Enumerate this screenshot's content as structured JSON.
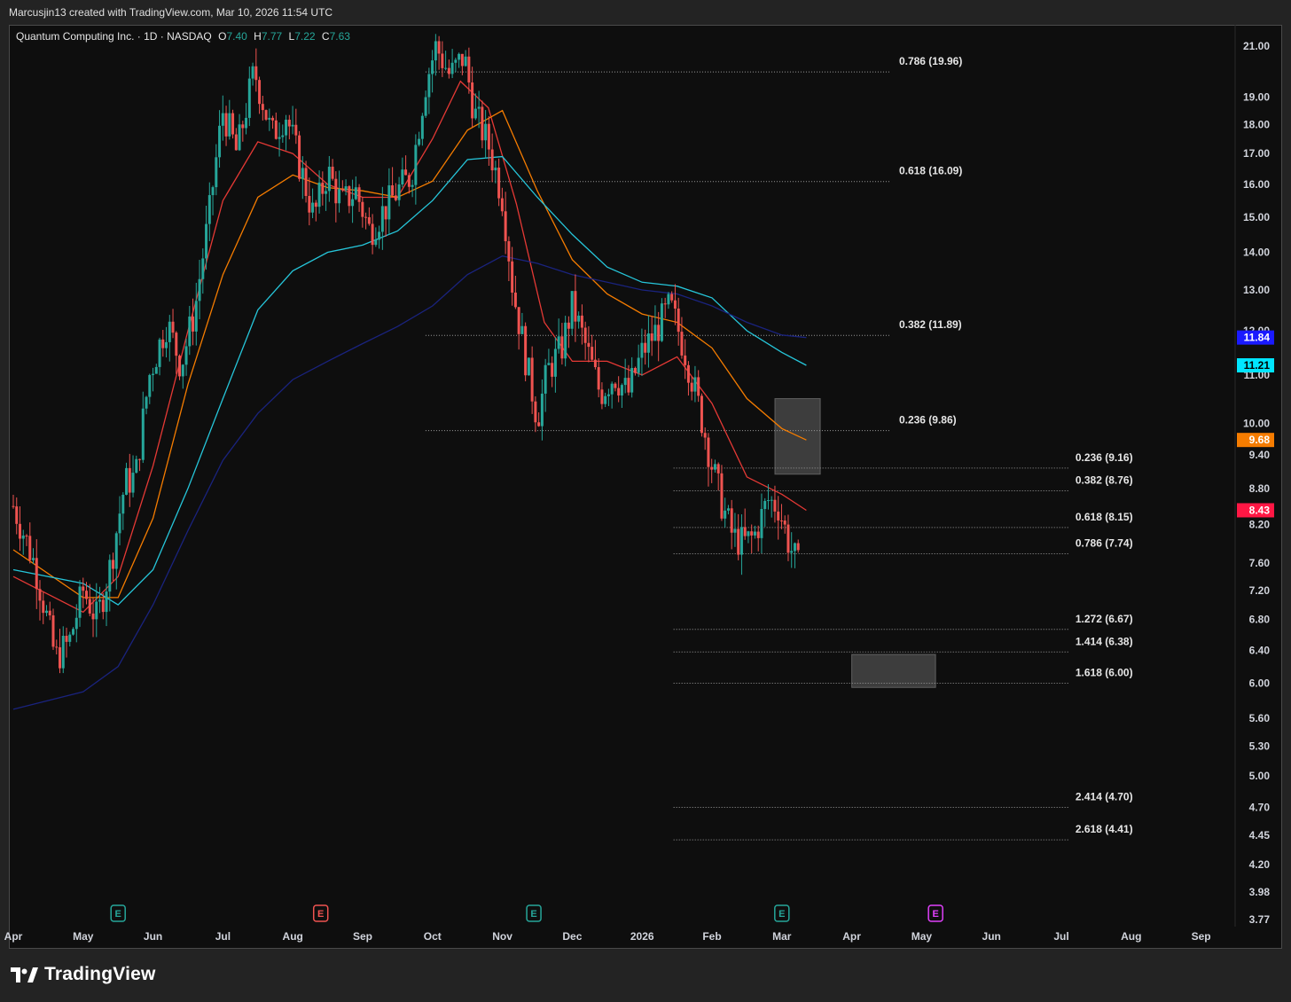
{
  "header": {
    "attribution": "Marcusjin13 created with TradingView.com, Mar 10, 2026 11:54 UTC"
  },
  "legend": {
    "symbol": "Quantum Computing Inc. · 1D · NASDAQ",
    "open_label": "O",
    "open": "7.40",
    "high_label": "H",
    "high": "7.77",
    "low_label": "L",
    "low": "7.22",
    "close_label": "C",
    "close": "7.63"
  },
  "footer": {
    "brand": "TradingView"
  },
  "colors": {
    "up": "#26a69a",
    "down": "#ef5350",
    "ma_red": "#e53935",
    "ma_orange": "#f57c00",
    "ma_teal": "#26c6da",
    "ma_blue": "#1a237e",
    "earnings_teal": "#26a69a",
    "earnings_red": "#ef5350",
    "earnings_magenta": "#e040fb"
  },
  "chart_data": {
    "type": "candlestick",
    "price_scale": "log",
    "y_ticks": [
      "21.00",
      "19.00",
      "18.00",
      "17.00",
      "16.00",
      "15.00",
      "14.00",
      "13.00",
      "12.00",
      "11.00",
      "10.00",
      "9.40",
      "8.80",
      "8.20",
      "7.60",
      "7.20",
      "6.80",
      "6.40",
      "6.00",
      "5.60",
      "5.30",
      "5.00",
      "4.70",
      "4.45",
      "4.20",
      "3.98",
      "3.77"
    ],
    "x_ticks": [
      {
        "label": "Apr",
        "month": 0
      },
      {
        "label": "May",
        "month": 1
      },
      {
        "label": "Jun",
        "month": 2
      },
      {
        "label": "Jul",
        "month": 3
      },
      {
        "label": "Aug",
        "month": 4
      },
      {
        "label": "Sep",
        "month": 5
      },
      {
        "label": "Oct",
        "month": 6
      },
      {
        "label": "Nov",
        "month": 7
      },
      {
        "label": "Dec",
        "month": 8
      },
      {
        "label": "2026",
        "month": 9
      },
      {
        "label": "Feb",
        "month": 10
      },
      {
        "label": "Mar",
        "month": 11
      },
      {
        "label": "Apr",
        "month": 12
      },
      {
        "label": "May",
        "month": 13
      },
      {
        "label": "Jun",
        "month": 14
      },
      {
        "label": "Jul",
        "month": 15
      },
      {
        "label": "Aug",
        "month": 16
      },
      {
        "label": "Sep",
        "month": 17
      }
    ],
    "price_badges": [
      {
        "value": "11.84",
        "color": "#1a1aff",
        "text_color": "#ffffff"
      },
      {
        "value": "11.21",
        "color": "#00e5ff",
        "text_color": "#000000"
      },
      {
        "value": "9.68",
        "color": "#f57c00",
        "text_color": "#ffffff"
      },
      {
        "value": "8.43",
        "color": "#ff1744",
        "text_color": "#ffffff"
      }
    ],
    "fib_levels": [
      {
        "label": "0.786 (19.96)",
        "price": 19.96,
        "set": "upper"
      },
      {
        "label": "0.618 (16.09)",
        "price": 16.09,
        "set": "upper"
      },
      {
        "label": "0.382 (11.89)",
        "price": 11.89,
        "set": "upper"
      },
      {
        "label": "0.236 (9.86)",
        "price": 9.86,
        "set": "upper"
      },
      {
        "label": "0.236 (9.16)",
        "price": 9.16,
        "set": "lower"
      },
      {
        "label": "0.382 (8.76)",
        "price": 8.76,
        "set": "lower"
      },
      {
        "label": "0.618 (8.15)",
        "price": 8.15,
        "set": "lower"
      },
      {
        "label": "0.786 (7.74)",
        "price": 7.74,
        "set": "lower"
      },
      {
        "label": "1.272 (6.67)",
        "price": 6.67,
        "set": "lower"
      },
      {
        "label": "1.414 (6.38)",
        "price": 6.38,
        "set": "lower"
      },
      {
        "label": "1.618 (6.00)",
        "price": 6.0,
        "set": "lower"
      },
      {
        "label": "2.414 (4.70)",
        "price": 4.7,
        "set": "lower"
      },
      {
        "label": "2.618 (4.41)",
        "price": 4.41,
        "set": "lower"
      }
    ],
    "zones": [
      {
        "name": "resistance-zone",
        "from_month": 10.9,
        "to_month": 11.55,
        "top": 10.5,
        "bottom": 9.05
      },
      {
        "name": "target-zone",
        "from_month": 12.0,
        "to_month": 13.2,
        "top": 6.35,
        "bottom": 5.95
      }
    ],
    "earnings_markers": [
      {
        "month": 1.5,
        "kind": "E",
        "color": "#26a69a"
      },
      {
        "month": 4.4,
        "kind": "E",
        "color": "#ef5350"
      },
      {
        "month": 7.45,
        "kind": "E",
        "color": "#26a69a"
      },
      {
        "month": 11.0,
        "kind": "E",
        "color": "#26a69a"
      },
      {
        "month": 13.2,
        "kind": "E",
        "color": "#e040fb"
      }
    ],
    "price_path": [
      {
        "m": 0.0,
        "p": 8.5
      },
      {
        "m": 0.3,
        "p": 7.6
      },
      {
        "m": 0.6,
        "p": 6.3
      },
      {
        "m": 0.8,
        "p": 6.5
      },
      {
        "m": 1.0,
        "p": 7.2
      },
      {
        "m": 1.2,
        "p": 6.8
      },
      {
        "m": 1.4,
        "p": 7.6
      },
      {
        "m": 1.6,
        "p": 8.9
      },
      {
        "m": 1.75,
        "p": 9.0
      },
      {
        "m": 1.95,
        "p": 11.0
      },
      {
        "m": 2.2,
        "p": 12.2
      },
      {
        "m": 2.4,
        "p": 11.2
      },
      {
        "m": 2.6,
        "p": 12.5
      },
      {
        "m": 2.8,
        "p": 15.0
      },
      {
        "m": 3.0,
        "p": 18.5
      },
      {
        "m": 3.2,
        "p": 17.0
      },
      {
        "m": 3.45,
        "p": 20.0
      },
      {
        "m": 3.7,
        "p": 17.6
      },
      {
        "m": 3.9,
        "p": 18.4
      },
      {
        "m": 4.1,
        "p": 16.6
      },
      {
        "m": 4.3,
        "p": 15.0
      },
      {
        "m": 4.5,
        "p": 16.4
      },
      {
        "m": 4.7,
        "p": 15.4
      },
      {
        "m": 4.9,
        "p": 15.8
      },
      {
        "m": 5.1,
        "p": 14.6
      },
      {
        "m": 5.3,
        "p": 15.2
      },
      {
        "m": 5.5,
        "p": 15.8
      },
      {
        "m": 5.7,
        "p": 16.3
      },
      {
        "m": 5.9,
        "p": 19.5
      },
      {
        "m": 6.05,
        "p": 21.0
      },
      {
        "m": 6.25,
        "p": 19.8
      },
      {
        "m": 6.45,
        "p": 20.6
      },
      {
        "m": 6.6,
        "p": 18.4
      },
      {
        "m": 6.8,
        "p": 17.3
      },
      {
        "m": 7.0,
        "p": 15.6
      },
      {
        "m": 7.15,
        "p": 13.0
      },
      {
        "m": 7.35,
        "p": 11.2
      },
      {
        "m": 7.5,
        "p": 10.1
      },
      {
        "m": 7.65,
        "p": 11.1
      },
      {
        "m": 7.85,
        "p": 11.6
      },
      {
        "m": 8.0,
        "p": 12.6
      },
      {
        "m": 8.2,
        "p": 11.6
      },
      {
        "m": 8.4,
        "p": 10.6
      },
      {
        "m": 8.6,
        "p": 11.0
      },
      {
        "m": 8.8,
        "p": 10.6
      },
      {
        "m": 9.0,
        "p": 11.5
      },
      {
        "m": 9.2,
        "p": 12.0
      },
      {
        "m": 9.4,
        "p": 12.6
      },
      {
        "m": 9.6,
        "p": 11.6
      },
      {
        "m": 9.8,
        "p": 10.4
      },
      {
        "m": 10.0,
        "p": 9.2
      },
      {
        "m": 10.15,
        "p": 8.5
      },
      {
        "m": 10.3,
        "p": 8.0
      },
      {
        "m": 10.45,
        "p": 7.9
      },
      {
        "m": 10.6,
        "p": 8.0
      },
      {
        "m": 10.8,
        "p": 8.6
      },
      {
        "m": 10.95,
        "p": 8.5
      },
      {
        "m": 11.1,
        "p": 7.9
      },
      {
        "m": 11.25,
        "p": 7.5
      }
    ],
    "moving_averages": [
      {
        "name": "ma-red",
        "color": "#e53935",
        "points": [
          {
            "m": 0.0,
            "p": 7.4
          },
          {
            "m": 1.0,
            "p": 6.9
          },
          {
            "m": 1.5,
            "p": 7.4
          },
          {
            "m": 2.0,
            "p": 9.2
          },
          {
            "m": 2.5,
            "p": 12.0
          },
          {
            "m": 3.0,
            "p": 15.5
          },
          {
            "m": 3.5,
            "p": 17.4
          },
          {
            "m": 4.0,
            "p": 17.0
          },
          {
            "m": 4.5,
            "p": 16.0
          },
          {
            "m": 5.0,
            "p": 15.6
          },
          {
            "m": 5.5,
            "p": 15.6
          },
          {
            "m": 6.0,
            "p": 17.5
          },
          {
            "m": 6.4,
            "p": 19.6
          },
          {
            "m": 6.8,
            "p": 18.6
          },
          {
            "m": 7.2,
            "p": 15.4
          },
          {
            "m": 7.6,
            "p": 12.2
          },
          {
            "m": 8.0,
            "p": 11.3
          },
          {
            "m": 8.5,
            "p": 11.3
          },
          {
            "m": 9.0,
            "p": 11.0
          },
          {
            "m": 9.5,
            "p": 11.4
          },
          {
            "m": 10.0,
            "p": 10.4
          },
          {
            "m": 10.5,
            "p": 9.0
          },
          {
            "m": 11.0,
            "p": 8.7
          },
          {
            "m": 11.35,
            "p": 8.43
          }
        ]
      },
      {
        "name": "ma-orange",
        "color": "#f57c00",
        "points": [
          {
            "m": 0.0,
            "p": 7.8
          },
          {
            "m": 1.0,
            "p": 7.1
          },
          {
            "m": 1.5,
            "p": 7.1
          },
          {
            "m": 2.0,
            "p": 8.3
          },
          {
            "m": 2.5,
            "p": 10.8
          },
          {
            "m": 3.0,
            "p": 13.4
          },
          {
            "m": 3.5,
            "p": 15.6
          },
          {
            "m": 4.0,
            "p": 16.3
          },
          {
            "m": 4.5,
            "p": 15.9
          },
          {
            "m": 5.0,
            "p": 15.8
          },
          {
            "m": 5.5,
            "p": 15.6
          },
          {
            "m": 6.0,
            "p": 16.1
          },
          {
            "m": 6.5,
            "p": 17.8
          },
          {
            "m": 7.0,
            "p": 18.5
          },
          {
            "m": 7.5,
            "p": 15.8
          },
          {
            "m": 8.0,
            "p": 13.8
          },
          {
            "m": 8.5,
            "p": 12.9
          },
          {
            "m": 9.0,
            "p": 12.4
          },
          {
            "m": 9.5,
            "p": 12.2
          },
          {
            "m": 10.0,
            "p": 11.6
          },
          {
            "m": 10.5,
            "p": 10.5
          },
          {
            "m": 11.0,
            "p": 9.9
          },
          {
            "m": 11.35,
            "p": 9.68
          }
        ]
      },
      {
        "name": "ma-teal",
        "color": "#26c6da",
        "points": [
          {
            "m": 0.0,
            "p": 7.5
          },
          {
            "m": 1.0,
            "p": 7.3
          },
          {
            "m": 1.5,
            "p": 7.0
          },
          {
            "m": 2.0,
            "p": 7.5
          },
          {
            "m": 2.5,
            "p": 8.8
          },
          {
            "m": 3.0,
            "p": 10.5
          },
          {
            "m": 3.5,
            "p": 12.5
          },
          {
            "m": 4.0,
            "p": 13.5
          },
          {
            "m": 4.5,
            "p": 14.0
          },
          {
            "m": 5.0,
            "p": 14.2
          },
          {
            "m": 5.5,
            "p": 14.6
          },
          {
            "m": 6.0,
            "p": 15.5
          },
          {
            "m": 6.5,
            "p": 16.8
          },
          {
            "m": 7.0,
            "p": 16.9
          },
          {
            "m": 7.5,
            "p": 15.6
          },
          {
            "m": 8.0,
            "p": 14.5
          },
          {
            "m": 8.5,
            "p": 13.6
          },
          {
            "m": 9.0,
            "p": 13.2
          },
          {
            "m": 9.5,
            "p": 13.1
          },
          {
            "m": 10.0,
            "p": 12.8
          },
          {
            "m": 10.5,
            "p": 12.0
          },
          {
            "m": 11.0,
            "p": 11.5
          },
          {
            "m": 11.35,
            "p": 11.21
          }
        ]
      },
      {
        "name": "ma-blue",
        "color": "#1a237e",
        "points": [
          {
            "m": 0.0,
            "p": 5.7
          },
          {
            "m": 1.0,
            "p": 5.9
          },
          {
            "m": 1.5,
            "p": 6.2
          },
          {
            "m": 2.0,
            "p": 7.0
          },
          {
            "m": 2.5,
            "p": 8.1
          },
          {
            "m": 3.0,
            "p": 9.3
          },
          {
            "m": 3.5,
            "p": 10.2
          },
          {
            "m": 4.0,
            "p": 10.9
          },
          {
            "m": 4.5,
            "p": 11.3
          },
          {
            "m": 5.0,
            "p": 11.7
          },
          {
            "m": 5.5,
            "p": 12.1
          },
          {
            "m": 6.0,
            "p": 12.6
          },
          {
            "m": 6.5,
            "p": 13.4
          },
          {
            "m": 7.0,
            "p": 13.9
          },
          {
            "m": 7.5,
            "p": 13.7
          },
          {
            "m": 8.0,
            "p": 13.4
          },
          {
            "m": 8.5,
            "p": 13.2
          },
          {
            "m": 9.0,
            "p": 13.0
          },
          {
            "m": 9.5,
            "p": 12.9
          },
          {
            "m": 10.0,
            "p": 12.6
          },
          {
            "m": 10.5,
            "p": 12.2
          },
          {
            "m": 11.0,
            "p": 11.9
          },
          {
            "m": 11.35,
            "p": 11.84
          }
        ]
      }
    ]
  }
}
